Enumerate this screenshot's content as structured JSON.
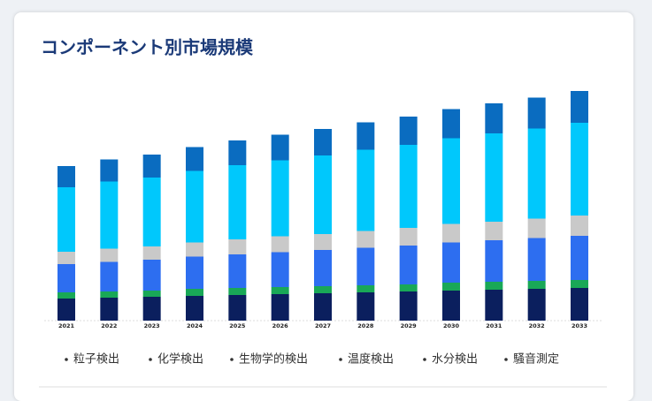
{
  "chart_data": {
    "type": "stacked_bar",
    "title": "コンポーネント別市場規模",
    "categories": [
      "2021",
      "2022",
      "2023",
      "2024",
      "2025",
      "2026",
      "2027",
      "2028",
      "2029",
      "2030",
      "2031",
      "2032",
      "2033"
    ],
    "series": [
      {
        "name": "粒子検出",
        "color": "#0b1f5e",
        "values": [
          25,
          26,
          27,
          28,
          29,
          30,
          31,
          32,
          33,
          34,
          35,
          36,
          37
        ]
      },
      {
        "name": "化学検出",
        "color": "#19a857",
        "values": [
          7,
          7,
          7,
          8,
          8,
          8,
          8,
          8,
          8,
          9,
          9,
          9,
          9
        ]
      },
      {
        "name": "生物学的検出",
        "color": "#2d6ef0",
        "values": [
          32,
          33.5,
          35,
          36.5,
          38,
          39.5,
          41,
          42.5,
          44,
          45.5,
          47,
          48.5,
          50
        ]
      },
      {
        "name": "温度検出",
        "color": "#c9c9c9",
        "values": [
          14,
          15,
          15,
          16,
          17,
          18,
          18,
          19,
          20,
          21,
          21,
          22,
          23
        ]
      },
      {
        "name": "水分検出",
        "color": "#00c8fc",
        "values": [
          73,
          76,
          78,
          81,
          84,
          86,
          89,
          92,
          94,
          97,
          100,
          102,
          105
        ]
      },
      {
        "name": "騒音測定",
        "color": "#0a6cc0",
        "values": [
          24,
          25,
          26,
          27,
          28,
          29,
          30,
          31,
          32,
          33,
          34,
          35,
          36
        ]
      }
    ]
  }
}
